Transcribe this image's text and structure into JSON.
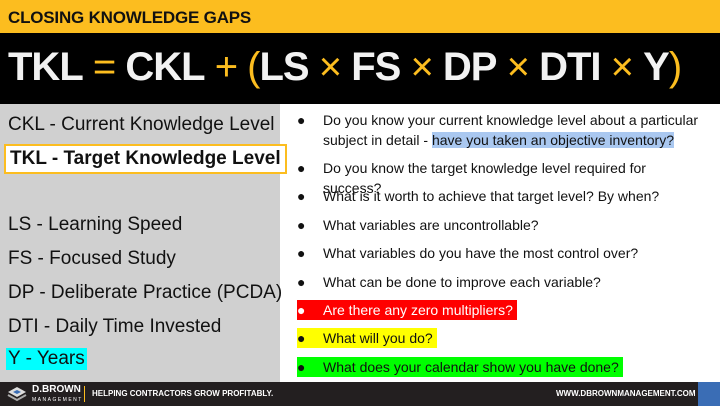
{
  "header": {
    "title": "CLOSING KNOWLEDGE GAPS"
  },
  "equation": [
    {
      "text": "TKL",
      "op": false
    },
    {
      "text": " = ",
      "op": true
    },
    {
      "text": "CKL",
      "op": false
    },
    {
      "text": " + (",
      "op": true
    },
    {
      "text": "LS",
      "op": false
    },
    {
      "text": " × ",
      "op": true
    },
    {
      "text": "FS",
      "op": false
    },
    {
      "text": " × ",
      "op": true
    },
    {
      "text": "DP",
      "op": false
    },
    {
      "text": " × ",
      "op": true
    },
    {
      "text": "DTI",
      "op": false
    },
    {
      "text": " × ",
      "op": true
    },
    {
      "text": "Y",
      "op": false
    },
    {
      "text": ")",
      "op": true
    }
  ],
  "definitions": {
    "ckl": "CKL - Current Knowledge Level",
    "tkl": "TKL - Target Knowledge Level",
    "ls": "LS - Learning Speed",
    "fs": "FS - Focused Study",
    "dp": "DP - Deliberate Practice (PCDA)",
    "dti": "DTI - Daily Time Invested",
    "y": "Y - Years"
  },
  "questions": {
    "q1a": "Do you know your current knowledge level about a particular subject in detail - ",
    "q1b": "have you taken an objective inventory?",
    "q2": "Do you know the target knowledge level required for success?",
    "q3": "What is it worth to achieve that target level?  By when?",
    "q4": "What variables are uncontrollable?",
    "q5": "What variables do you have the most control over?",
    "q6": "What can be done to improve each variable?",
    "q7": "Are there any zero multipliers?",
    "q8": "What will you do?",
    "q9": "What does your calendar show you have done?"
  },
  "bullet": "●",
  "footer": {
    "brand": "D.BROWN",
    "brand_sub": "MANAGEMENT",
    "tagline": "HELPING CONTRACTORS GROW PROFITABLY.",
    "url": "WWW.DBROWNMANAGEMENT.COM"
  },
  "colors": {
    "accent": "#fcbd1f",
    "red": "#ff0000",
    "yellow": "#ffff00",
    "green": "#00ff00",
    "cyan": "#00ffff",
    "highlight": "#aac8f0"
  }
}
